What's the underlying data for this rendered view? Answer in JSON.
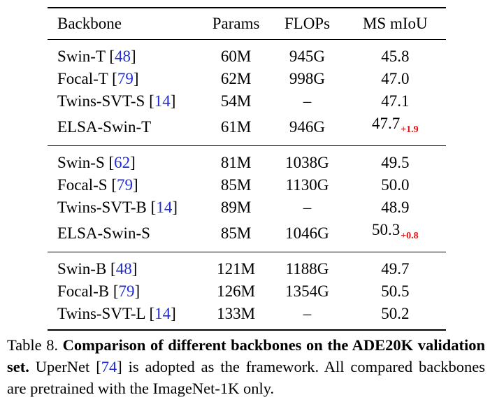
{
  "table": {
    "headers": {
      "backbone": "Backbone",
      "params": "Params",
      "flops": "FLOPs",
      "miou": "MS mIoU"
    },
    "groups": [
      {
        "rows": [
          {
            "name": "Swin-T",
            "ref": "48",
            "params": "60M",
            "flops": "945G",
            "miou": "45.8"
          },
          {
            "name": "Focal-T",
            "ref": "79",
            "params": "62M",
            "flops": "998G",
            "miou": "47.0"
          },
          {
            "name": "Twins-SVT-S",
            "ref": "14",
            "params": "54M",
            "flops": "–",
            "miou": "47.1"
          },
          {
            "name": "ELSA-Swin-T",
            "params": "61M",
            "flops": "946G",
            "miou": "47.7",
            "gain": "+1.9",
            "bold": true
          }
        ]
      },
      {
        "rows": [
          {
            "name": "Swin-S",
            "ref": "62",
            "params": "81M",
            "flops": "1038G",
            "miou": "49.5"
          },
          {
            "name": "Focal-S",
            "ref": "79",
            "params": "85M",
            "flops": "1130G",
            "miou": "50.0"
          },
          {
            "name": "Twins-SVT-B",
            "ref": "14",
            "params": "89M",
            "flops": "–",
            "miou": "48.9"
          },
          {
            "name": "ELSA-Swin-S",
            "params": "85M",
            "flops": "1046G",
            "miou": "50.3",
            "gain": "+0.8",
            "bold": true
          }
        ]
      },
      {
        "rows": [
          {
            "name": "Swin-B",
            "ref": "48",
            "params": "121M",
            "flops": "1188G",
            "miou": "49.7"
          },
          {
            "name": "Focal-B",
            "ref": "79",
            "params": "126M",
            "flops": "1354G",
            "miou": "50.5"
          },
          {
            "name": "Twins-SVT-L",
            "ref": "14",
            "params": "133M",
            "flops": "–",
            "miou": "50.2"
          }
        ]
      }
    ]
  },
  "caption": {
    "label": "Table 8.",
    "title": "Comparison of different backbones on the ADE20K validation set.",
    "body_before_ref": "UperNet",
    "ref": "74",
    "body_after_ref": "is adopted as the framework. All compared backbones are pretrained with the ImageNet-1K only."
  }
}
